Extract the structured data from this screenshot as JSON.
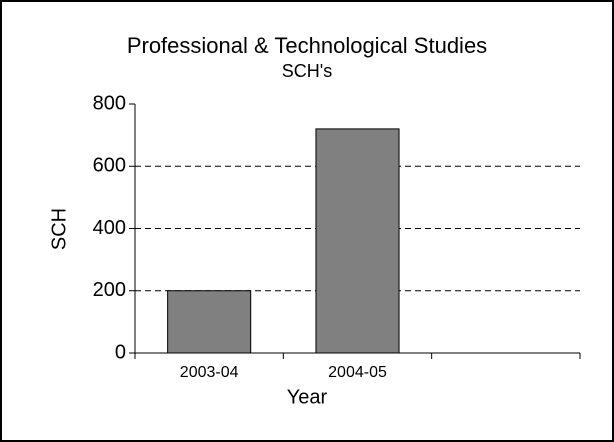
{
  "chart_data": {
    "type": "bar",
    "title": "Professional & Technological Studies",
    "subtitle": "SCH's",
    "x_label": "Year",
    "y_label": "SCH",
    "categories": [
      "2003-04",
      "2004-05",
      null
    ],
    "values": [
      200,
      720,
      null
    ],
    "color": "#808080",
    "ylim": [
      0,
      800
    ],
    "yticks": [
      0,
      200,
      400,
      600,
      800
    ],
    "grid": true
  }
}
